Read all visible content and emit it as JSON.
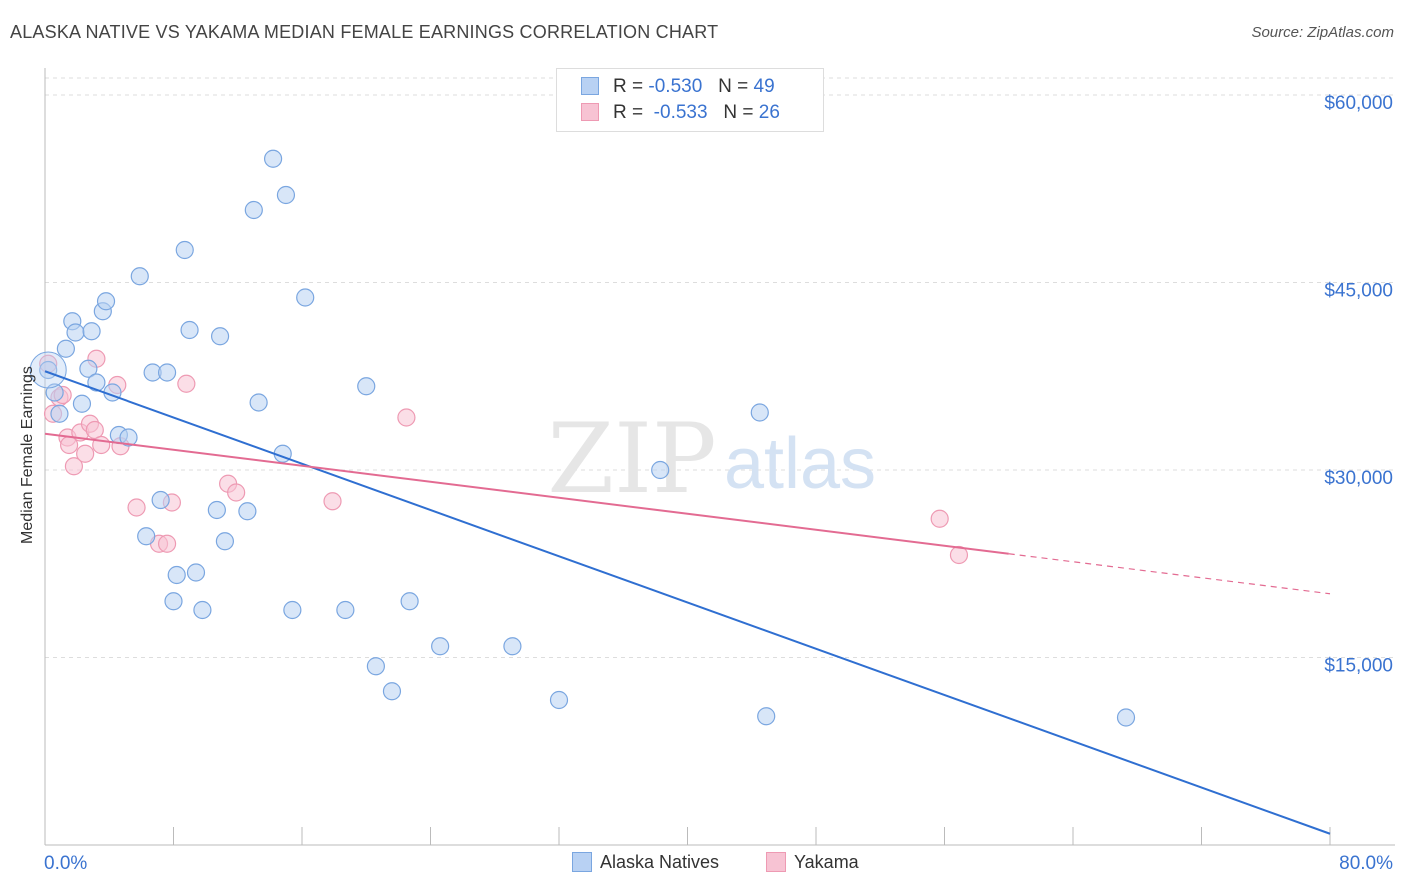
{
  "title": "ALASKA NATIVE VS YAKAMA MEDIAN FEMALE EARNINGS CORRELATION CHART",
  "source": "Source: ZipAtlas.com",
  "watermark": {
    "zip": "ZIP",
    "atlas": "atlas"
  },
  "legend": {
    "rows": [
      {
        "r_label": "R =",
        "r_value": "-0.530",
        "n_label": "N =",
        "n_value": "49"
      },
      {
        "r_label": "R =",
        "r_value": "-0.533",
        "n_label": "N =",
        "n_value": "26"
      }
    ]
  },
  "bottom_legend": {
    "series1": "Alaska Natives",
    "series2": "Yakama"
  },
  "colors": {
    "blue_fill": "#b8d1f3",
    "blue_stroke": "#7aa6e0",
    "blue_line": "#2f6fd1",
    "pink_fill": "#f7c3d3",
    "pink_stroke": "#ee9ab3",
    "pink_line": "#e36b92",
    "tick_label": "#3a73d0",
    "grid": "#dddddd"
  },
  "chart_data": {
    "type": "scatter",
    "title": "ALASKA NATIVE VS YAKAMA MEDIAN FEMALE EARNINGS CORRELATION CHART",
    "xlabel": "",
    "ylabel": "Median Female Earnings",
    "xlim": [
      0,
      80
    ],
    "ylim": [
      0,
      62000
    ],
    "x_tick_labels": [
      "0.0%",
      "80.0%"
    ],
    "y_ticks": [
      15000,
      30000,
      45000,
      60000
    ],
    "y_tick_labels": [
      "$15,000",
      "$30,000",
      "$45,000",
      "$60,000"
    ],
    "grid": true,
    "legend_position": "top-center",
    "series": [
      {
        "name": "Alaska Natives",
        "points": [
          [
            0.2,
            38000
          ],
          [
            0.6,
            36200
          ],
          [
            0.9,
            34500
          ],
          [
            1.3,
            39700
          ],
          [
            1.7,
            41900
          ],
          [
            1.9,
            41000
          ],
          [
            2.3,
            35300
          ],
          [
            2.7,
            38100
          ],
          [
            2.9,
            41100
          ],
          [
            3.2,
            37000
          ],
          [
            3.6,
            42700
          ],
          [
            3.8,
            43500
          ],
          [
            4.2,
            36200
          ],
          [
            4.6,
            32800
          ],
          [
            5.2,
            32600
          ],
          [
            5.9,
            45500
          ],
          [
            6.3,
            24700
          ],
          [
            6.7,
            37800
          ],
          [
            7.2,
            27600
          ],
          [
            7.6,
            37800
          ],
          [
            8.0,
            19500
          ],
          [
            8.2,
            21600
          ],
          [
            8.7,
            47600
          ],
          [
            9.0,
            41200
          ],
          [
            9.4,
            21800
          ],
          [
            9.8,
            18800
          ],
          [
            10.7,
            26800
          ],
          [
            10.9,
            40700
          ],
          [
            11.2,
            24300
          ],
          [
            12.6,
            26700
          ],
          [
            13.0,
            50800
          ],
          [
            13.3,
            35400
          ],
          [
            14.2,
            54900
          ],
          [
            14.8,
            31300
          ],
          [
            15.0,
            52000
          ],
          [
            15.4,
            18800
          ],
          [
            16.2,
            43800
          ],
          [
            18.7,
            18800
          ],
          [
            20.0,
            36700
          ],
          [
            20.6,
            14300
          ],
          [
            21.6,
            12300
          ],
          [
            22.7,
            19500
          ],
          [
            24.6,
            15900
          ],
          [
            29.1,
            15900
          ],
          [
            32.0,
            11600
          ],
          [
            38.3,
            30000
          ],
          [
            44.5,
            34600
          ],
          [
            44.9,
            10300
          ],
          [
            67.3,
            10200
          ]
        ],
        "trend": {
          "x": [
            0,
            80
          ],
          "y": [
            37900,
            900
          ]
        }
      },
      {
        "name": "Yakama",
        "points": [
          [
            0.2,
            38500
          ],
          [
            0.5,
            34500
          ],
          [
            0.9,
            35800
          ],
          [
            1.1,
            36000
          ],
          [
            1.4,
            32600
          ],
          [
            1.5,
            32000
          ],
          [
            1.8,
            30300
          ],
          [
            2.2,
            33000
          ],
          [
            2.5,
            31300
          ],
          [
            2.8,
            33700
          ],
          [
            3.1,
            33200
          ],
          [
            3.2,
            38900
          ],
          [
            3.5,
            32000
          ],
          [
            4.5,
            36800
          ],
          [
            4.7,
            31900
          ],
          [
            5.7,
            27000
          ],
          [
            7.1,
            24100
          ],
          [
            7.6,
            24100
          ],
          [
            7.9,
            27400
          ],
          [
            8.8,
            36900
          ],
          [
            11.4,
            28900
          ],
          [
            11.9,
            28200
          ],
          [
            17.9,
            27500
          ],
          [
            22.5,
            34200
          ],
          [
            55.7,
            26100
          ],
          [
            56.9,
            23200
          ]
        ],
        "trend": {
          "x": [
            0,
            60
          ],
          "y": [
            32900,
            23300
          ]
        },
        "trend_dashed": {
          "x": [
            60,
            80
          ],
          "y": [
            23300,
            20100
          ]
        }
      }
    ]
  }
}
